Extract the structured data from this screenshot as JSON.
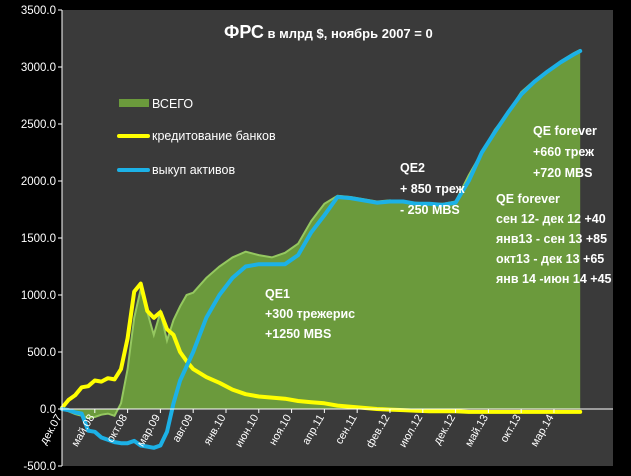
{
  "chart_data": {
    "type": "line",
    "title_main": "ФРС",
    "title_rest": " в млрд $, ноябрь 2007 = 0",
    "ylim": [
      -500,
      3500
    ],
    "y_ticks": [
      "3500.0",
      "3000.0",
      "2500.0",
      "2000.0",
      "1500.0",
      "1000.0",
      "500.0",
      "0.0",
      "-500.0"
    ],
    "y_tick_values": [
      3500,
      3000,
      2500,
      2000,
      1500,
      1000,
      500,
      0,
      -500
    ],
    "xlim": [
      0,
      84
    ],
    "x_ticks": [
      "дек.07",
      "май.08",
      "окт.08",
      "мар.09",
      "авг.09",
      "янв.10",
      "июн.10",
      "ноя.10",
      "апр.11",
      "сен.11",
      "фев.12",
      "июл.12",
      "дек.12",
      "май.13",
      "окт.13",
      "мар.14"
    ],
    "x_tick_months": [
      0,
      5,
      10,
      15,
      20,
      25,
      30,
      35,
      40,
      45,
      50,
      55,
      60,
      65,
      70,
      75
    ],
    "legend_position": "left-middle",
    "grid": false,
    "colors": {
      "plot_bg": "#3a3a3a",
      "total_fill": "#6b9a3c",
      "total_edge": "#95c860",
      "bank": "#ffff00",
      "assets": "#1cb1e6",
      "text": "#ffffff",
      "axis": "#ffffff"
    },
    "series": [
      {
        "name": "ВСЕГО",
        "kind": "area",
        "points": [
          [
            0,
            0
          ],
          [
            1,
            -20
          ],
          [
            2,
            -45
          ],
          [
            3,
            -60
          ],
          [
            4,
            -80
          ],
          [
            5,
            -70
          ],
          [
            6,
            -50
          ],
          [
            7,
            -40
          ],
          [
            8,
            -60
          ],
          [
            9,
            50
          ],
          [
            10,
            350
          ],
          [
            11,
            800
          ],
          [
            12,
            1050
          ],
          [
            13,
            850
          ],
          [
            14,
            650
          ],
          [
            15,
            850
          ],
          [
            16,
            600
          ],
          [
            17,
            780
          ],
          [
            18,
            900
          ],
          [
            19,
            1000
          ],
          [
            20,
            1020
          ],
          [
            22,
            1150
          ],
          [
            24,
            1250
          ],
          [
            26,
            1330
          ],
          [
            28,
            1380
          ],
          [
            30,
            1350
          ],
          [
            32,
            1330
          ],
          [
            34,
            1370
          ],
          [
            36,
            1450
          ],
          [
            38,
            1650
          ],
          [
            40,
            1800
          ],
          [
            42,
            1870
          ],
          [
            44,
            1860
          ],
          [
            46,
            1840
          ],
          [
            48,
            1820
          ],
          [
            50,
            1830
          ],
          [
            52,
            1820
          ],
          [
            54,
            1810
          ],
          [
            56,
            1800
          ],
          [
            58,
            1800
          ],
          [
            60,
            1820
          ],
          [
            62,
            2050
          ],
          [
            64,
            2250
          ],
          [
            66,
            2450
          ],
          [
            68,
            2600
          ],
          [
            70,
            2780
          ],
          [
            72,
            2880
          ],
          [
            74,
            2960
          ],
          [
            76,
            3050
          ],
          [
            78,
            3120
          ],
          [
            79,
            3150
          ]
        ]
      },
      {
        "name": "кредитование банков",
        "kind": "line",
        "points": [
          [
            0,
            10
          ],
          [
            1,
            80
          ],
          [
            2,
            120
          ],
          [
            3,
            190
          ],
          [
            4,
            200
          ],
          [
            5,
            250
          ],
          [
            6,
            240
          ],
          [
            7,
            270
          ],
          [
            8,
            260
          ],
          [
            9,
            350
          ],
          [
            10,
            620
          ],
          [
            11,
            1030
          ],
          [
            12,
            1100
          ],
          [
            13,
            860
          ],
          [
            14,
            800
          ],
          [
            15,
            850
          ],
          [
            16,
            700
          ],
          [
            17,
            650
          ],
          [
            18,
            500
          ],
          [
            19,
            420
          ],
          [
            20,
            350
          ],
          [
            22,
            280
          ],
          [
            24,
            230
          ],
          [
            26,
            170
          ],
          [
            28,
            130
          ],
          [
            30,
            110
          ],
          [
            32,
            100
          ],
          [
            34,
            90
          ],
          [
            36,
            70
          ],
          [
            38,
            60
          ],
          [
            40,
            50
          ],
          [
            42,
            30
          ],
          [
            44,
            20
          ],
          [
            46,
            10
          ],
          [
            48,
            0
          ],
          [
            50,
            -5
          ],
          [
            52,
            -10
          ],
          [
            54,
            -15
          ],
          [
            56,
            -20
          ],
          [
            58,
            -20
          ],
          [
            60,
            -20
          ],
          [
            62,
            -25
          ],
          [
            64,
            -25
          ],
          [
            66,
            -25
          ],
          [
            68,
            -25
          ],
          [
            70,
            -25
          ],
          [
            72,
            -25
          ],
          [
            74,
            -25
          ],
          [
            76,
            -25
          ],
          [
            78,
            -25
          ],
          [
            79,
            -25
          ]
        ]
      },
      {
        "name": "выкуп активов",
        "kind": "line",
        "points": [
          [
            0,
            0
          ],
          [
            1,
            -10
          ],
          [
            2,
            -30
          ],
          [
            3,
            -40
          ],
          [
            4,
            -190
          ],
          [
            5,
            -200
          ],
          [
            6,
            -250
          ],
          [
            7,
            -270
          ],
          [
            8,
            -290
          ],
          [
            9,
            -300
          ],
          [
            10,
            -300
          ],
          [
            11,
            -280
          ],
          [
            12,
            -320
          ],
          [
            13,
            -330
          ],
          [
            14,
            -340
          ],
          [
            15,
            -320
          ],
          [
            16,
            -200
          ],
          [
            17,
            50
          ],
          [
            18,
            250
          ],
          [
            20,
            500
          ],
          [
            22,
            800
          ],
          [
            24,
            1000
          ],
          [
            26,
            1150
          ],
          [
            28,
            1250
          ],
          [
            30,
            1270
          ],
          [
            32,
            1270
          ],
          [
            34,
            1270
          ],
          [
            36,
            1350
          ],
          [
            38,
            1550
          ],
          [
            40,
            1700
          ],
          [
            42,
            1860
          ],
          [
            44,
            1850
          ],
          [
            46,
            1830
          ],
          [
            48,
            1810
          ],
          [
            50,
            1820
          ],
          [
            52,
            1820
          ],
          [
            54,
            1800
          ],
          [
            56,
            1800
          ],
          [
            58,
            1790
          ],
          [
            60,
            1810
          ],
          [
            62,
            2000
          ],
          [
            64,
            2250
          ],
          [
            66,
            2430
          ],
          [
            68,
            2600
          ],
          [
            70,
            2760
          ],
          [
            72,
            2870
          ],
          [
            74,
            2960
          ],
          [
            76,
            3040
          ],
          [
            78,
            3110
          ],
          [
            79,
            3140
          ]
        ]
      }
    ],
    "annotations": [
      {
        "name": "qe1",
        "lines": [
          "QE1",
          "+300 трежерис",
          "+1250 MBS"
        ]
      },
      {
        "name": "qe2",
        "lines": [
          "QE2",
          "+ 850 треж",
          "- 250 MBS"
        ]
      },
      {
        "name": "qe-forever-a",
        "lines": [
          "QE forever",
          "+660 треж",
          "+720 MBS"
        ]
      },
      {
        "name": "qe-forever-b",
        "lines": [
          "QE forever",
          "сен 12- дек 12 +40",
          "янв13 - сен 13 +85",
          "окт13 - дек 13 +65",
          "янв 14 -июн 14 +45"
        ]
      }
    ]
  }
}
